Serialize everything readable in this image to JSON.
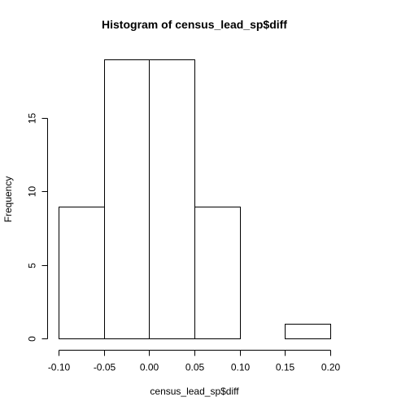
{
  "chart_data": {
    "type": "bar",
    "title": "Histogram of census_lead_sp$diff",
    "xlabel": "census_lead_sp$diff",
    "ylabel": "Frequency",
    "bins": [
      {
        "from": -0.1,
        "to": -0.05,
        "count": 9
      },
      {
        "from": -0.05,
        "to": 0.0,
        "count": 19
      },
      {
        "from": 0.0,
        "to": 0.05,
        "count": 19
      },
      {
        "from": 0.05,
        "to": 0.1,
        "count": 9
      },
      {
        "from": 0.1,
        "to": 0.15,
        "count": 0
      },
      {
        "from": 0.15,
        "to": 0.2,
        "count": 1
      }
    ],
    "xlim": [
      -0.1,
      0.2
    ],
    "ylim": [
      0,
      19
    ],
    "x_ticks": [
      {
        "value": -0.1,
        "label": "-0.10"
      },
      {
        "value": -0.05,
        "label": "-0.05"
      },
      {
        "value": 0.0,
        "label": "0.00"
      },
      {
        "value": 0.05,
        "label": "0.05"
      },
      {
        "value": 0.1,
        "label": "0.10"
      },
      {
        "value": 0.15,
        "label": "0.15"
      },
      {
        "value": 0.2,
        "label": "0.20"
      }
    ],
    "y_ticks": [
      {
        "value": 0,
        "label": "0"
      },
      {
        "value": 5,
        "label": "5"
      },
      {
        "value": 10,
        "label": "10"
      },
      {
        "value": 15,
        "label": "15"
      }
    ],
    "grid": false,
    "legend": "none",
    "colors": {
      "bar_fill": "#ffffff",
      "bar_stroke": "#000000",
      "background": "#ffffff"
    }
  }
}
